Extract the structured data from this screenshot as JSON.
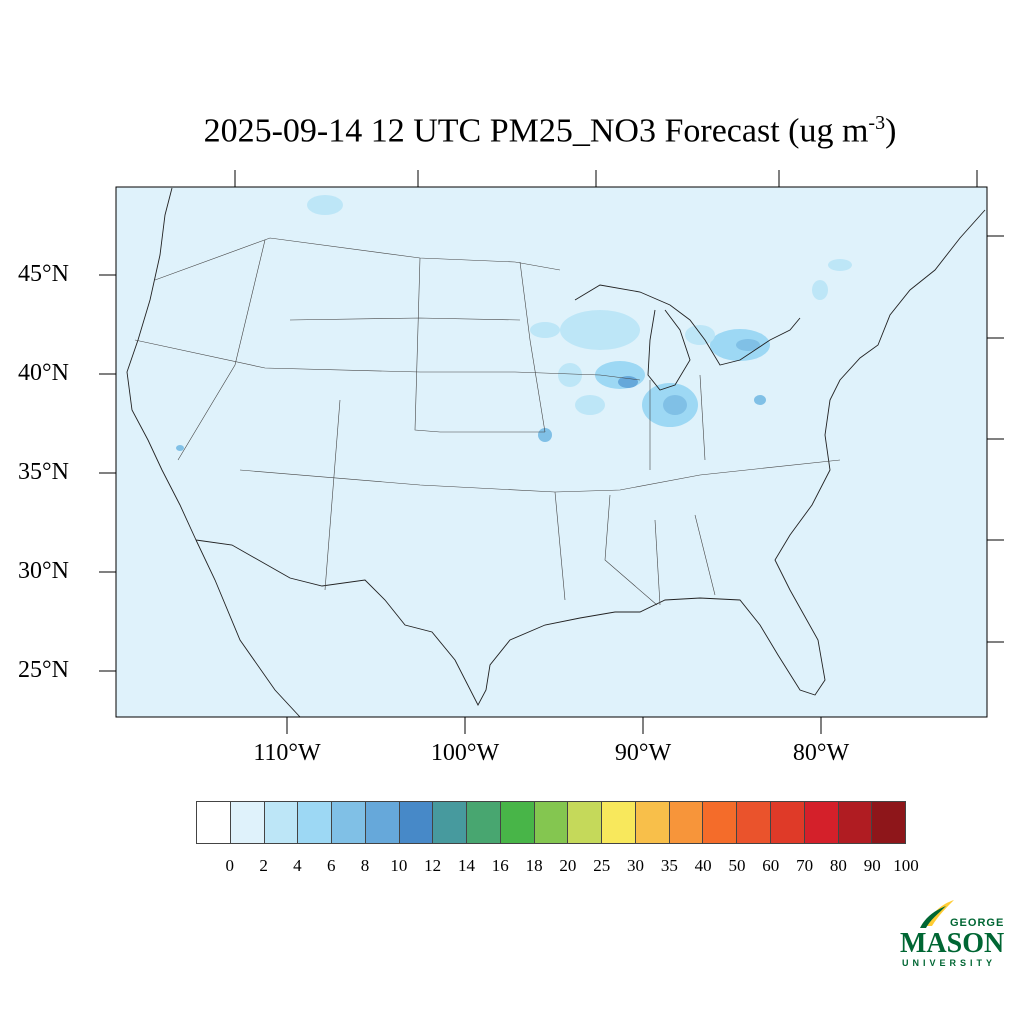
{
  "title": {
    "main": "2025-09-14 12 UTC PM25_NO3 Forecast (ug m",
    "exponent": "-3",
    "close": ")"
  },
  "lat_labels": [
    "45°N",
    "40°N",
    "35°N",
    "30°N",
    "25°N"
  ],
  "lon_labels": [
    "110°W",
    "100°W",
    "90°W",
    "80°W"
  ],
  "colorbar": {
    "labels": [
      "0",
      "2",
      "4",
      "6",
      "8",
      "10",
      "12",
      "14",
      "16",
      "18",
      "20",
      "25",
      "30",
      "35",
      "40",
      "50",
      "60",
      "70",
      "80",
      "90",
      "100"
    ],
    "colors": [
      "#ffffff",
      "#dff2fb",
      "#bde6f7",
      "#9dd8f4",
      "#80c0e6",
      "#66a8da",
      "#4789c8",
      "#479a9e",
      "#48a670",
      "#48b548",
      "#84c650",
      "#c5d95a",
      "#f8e85c",
      "#f8bf4a",
      "#f7953a",
      "#f46c2a",
      "#ea532c",
      "#df3a28",
      "#d4202a",
      "#b01c22",
      "#8e161a"
    ]
  },
  "map": {
    "background": "#dff2fb",
    "plume_colors": [
      "#bde6f7",
      "#9dd8f4",
      "#80c0e6",
      "#66a8da"
    ]
  },
  "logo": {
    "line1": "GEORGE",
    "line2": "MASON",
    "line3": "UNIVERSITY",
    "green": "#006633",
    "gold": "#ffcc33"
  }
}
